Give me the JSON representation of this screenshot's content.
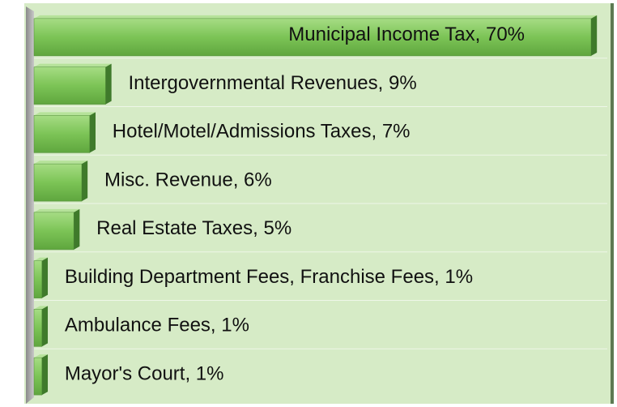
{
  "chart_data": {
    "type": "bar",
    "value_labels": [
      "Municipal Income Tax, 70%",
      "Intergovernmental Revenues, 9%",
      "Hotel/Motel/Admissions Taxes, 7%",
      "Misc. Revenue, 6%",
      "Real Estate Taxes, 5%",
      "Building Department Fees, Franchise Fees, 1%",
      "Ambulance Fees, 1%",
      "Mayor's Court, 1%"
    ],
    "values": [
      70,
      9,
      7,
      6,
      5,
      1,
      1,
      1
    ],
    "color": "#78bf52",
    "xlim": [
      0,
      70
    ],
    "grid": true
  }
}
